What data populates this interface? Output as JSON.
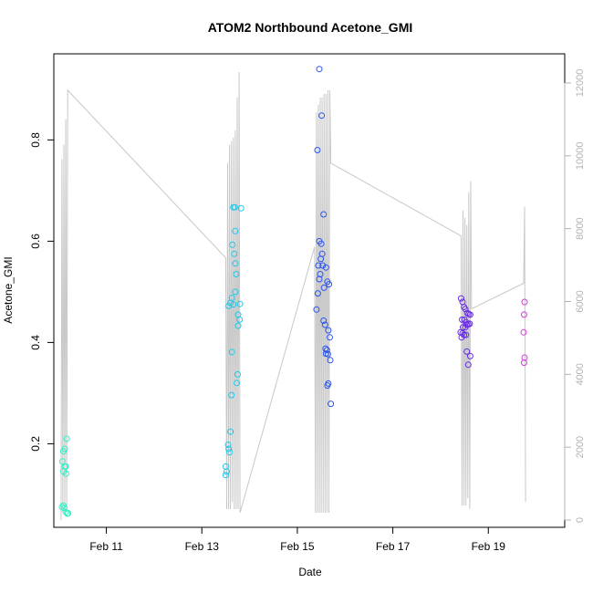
{
  "chart_data": {
    "type": "scatter",
    "title": "ATOM2 Northbound Acetone_GMI",
    "xlabel": "Date",
    "ylabel": "Acetone_GMI",
    "xlim_days": [
      9.9,
      20.6
    ],
    "ylim": [
      0.035,
      0.97
    ],
    "ylim_right": [
      -200,
      12800
    ],
    "x_ticks": [
      {
        "day": 11,
        "label": "Feb 11"
      },
      {
        "day": 13,
        "label": "Feb 13"
      },
      {
        "day": 15,
        "label": "Feb 15"
      },
      {
        "day": 17,
        "label": "Feb 17"
      },
      {
        "day": 19,
        "label": "Feb 19"
      }
    ],
    "y_ticks": [
      0.2,
      0.4,
      0.6,
      0.8
    ],
    "y_ticks_right": [
      0,
      2000,
      4000,
      6000,
      8000,
      10000,
      12000
    ],
    "points": [
      {
        "x": 10.07,
        "y": 0.075,
        "color": "#33f0c6"
      },
      {
        "x": 10.1,
        "y": 0.078,
        "color": "#33f0c6"
      },
      {
        "x": 10.12,
        "y": 0.073,
        "color": "#33f0c6"
      },
      {
        "x": 10.15,
        "y": 0.065,
        "color": "#33f0c6"
      },
      {
        "x": 10.18,
        "y": 0.062,
        "color": "#33f0c6"
      },
      {
        "x": 10.2,
        "y": 0.063,
        "color": "#33f0c6"
      },
      {
        "x": 10.08,
        "y": 0.165,
        "color": "#33f0c6"
      },
      {
        "x": 10.1,
        "y": 0.145,
        "color": "#33f0c6"
      },
      {
        "x": 10.13,
        "y": 0.155,
        "color": "#33f0c6"
      },
      {
        "x": 10.16,
        "y": 0.141,
        "color": "#33f0c6"
      },
      {
        "x": 10.1,
        "y": 0.185,
        "color": "#33f0c6"
      },
      {
        "x": 10.13,
        "y": 0.19,
        "color": "#33f0c6"
      },
      {
        "x": 10.17,
        "y": 0.21,
        "color": "#33f0c6"
      },
      {
        "x": 10.15,
        "y": 0.155,
        "color": "#33f0c6"
      },
      {
        "x": 13.5,
        "y": 0.155,
        "color": "#1fc8ea"
      },
      {
        "x": 13.52,
        "y": 0.145,
        "color": "#1fc8ea"
      },
      {
        "x": 13.5,
        "y": 0.138,
        "color": "#1fc8ea"
      },
      {
        "x": 13.55,
        "y": 0.198,
        "color": "#1fc8ea"
      },
      {
        "x": 13.56,
        "y": 0.19,
        "color": "#1fc8ea"
      },
      {
        "x": 13.58,
        "y": 0.183,
        "color": "#1fc8ea"
      },
      {
        "x": 13.6,
        "y": 0.224,
        "color": "#1fc8ea"
      },
      {
        "x": 13.62,
        "y": 0.296,
        "color": "#1fc8ea"
      },
      {
        "x": 13.63,
        "y": 0.381,
        "color": "#1fc8ea"
      },
      {
        "x": 13.56,
        "y": 0.472,
        "color": "#1fc8ea"
      },
      {
        "x": 13.6,
        "y": 0.478,
        "color": "#1fc8ea"
      },
      {
        "x": 13.63,
        "y": 0.488,
        "color": "#1fc8ea"
      },
      {
        "x": 13.66,
        "y": 0.475,
        "color": "#1fc8ea"
      },
      {
        "x": 13.7,
        "y": 0.5,
        "color": "#1fc8ea"
      },
      {
        "x": 13.64,
        "y": 0.593,
        "color": "#1fc8ea"
      },
      {
        "x": 13.68,
        "y": 0.575,
        "color": "#1fc8ea"
      },
      {
        "x": 13.7,
        "y": 0.556,
        "color": "#1fc8ea"
      },
      {
        "x": 13.72,
        "y": 0.535,
        "color": "#1fc8ea"
      },
      {
        "x": 13.7,
        "y": 0.62,
        "color": "#1fc8ea"
      },
      {
        "x": 13.66,
        "y": 0.667,
        "color": "#1fc8ea"
      },
      {
        "x": 13.69,
        "y": 0.667,
        "color": "#1fc8ea"
      },
      {
        "x": 13.82,
        "y": 0.665,
        "color": "#1fc8ea"
      },
      {
        "x": 13.8,
        "y": 0.476,
        "color": "#1fc8ea"
      },
      {
        "x": 13.76,
        "y": 0.455,
        "color": "#1fc8ea"
      },
      {
        "x": 13.79,
        "y": 0.445,
        "color": "#1fc8ea"
      },
      {
        "x": 13.76,
        "y": 0.433,
        "color": "#1fc8ea"
      },
      {
        "x": 13.75,
        "y": 0.337,
        "color": "#1fc8ea"
      },
      {
        "x": 13.73,
        "y": 0.32,
        "color": "#1fc8ea"
      },
      {
        "x": 15.46,
        "y": 0.94,
        "color": "#2a55f0"
      },
      {
        "x": 15.51,
        "y": 0.848,
        "color": "#2a55f0"
      },
      {
        "x": 15.42,
        "y": 0.78,
        "color": "#2a55f0"
      },
      {
        "x": 15.55,
        "y": 0.653,
        "color": "#2a55f0"
      },
      {
        "x": 15.46,
        "y": 0.6,
        "color": "#2a55f0"
      },
      {
        "x": 15.5,
        "y": 0.595,
        "color": "#2a55f0"
      },
      {
        "x": 15.52,
        "y": 0.575,
        "color": "#2a55f0"
      },
      {
        "x": 15.49,
        "y": 0.565,
        "color": "#2a55f0"
      },
      {
        "x": 15.44,
        "y": 0.552,
        "color": "#2a55f0"
      },
      {
        "x": 15.53,
        "y": 0.552,
        "color": "#2a55f0"
      },
      {
        "x": 15.6,
        "y": 0.548,
        "color": "#2a55f0"
      },
      {
        "x": 15.48,
        "y": 0.535,
        "color": "#2a55f0"
      },
      {
        "x": 15.46,
        "y": 0.525,
        "color": "#2a55f0"
      },
      {
        "x": 15.63,
        "y": 0.52,
        "color": "#2a55f0"
      },
      {
        "x": 15.66,
        "y": 0.515,
        "color": "#2a55f0"
      },
      {
        "x": 15.56,
        "y": 0.508,
        "color": "#2a55f0"
      },
      {
        "x": 15.43,
        "y": 0.497,
        "color": "#2a55f0"
      },
      {
        "x": 15.4,
        "y": 0.465,
        "color": "#2a55f0"
      },
      {
        "x": 15.55,
        "y": 0.443,
        "color": "#2a55f0"
      },
      {
        "x": 15.58,
        "y": 0.435,
        "color": "#2a55f0"
      },
      {
        "x": 15.65,
        "y": 0.424,
        "color": "#2a55f0"
      },
      {
        "x": 15.68,
        "y": 0.41,
        "color": "#2a55f0"
      },
      {
        "x": 15.59,
        "y": 0.388,
        "color": "#2a55f0"
      },
      {
        "x": 15.62,
        "y": 0.385,
        "color": "#2a55f0"
      },
      {
        "x": 15.6,
        "y": 0.378,
        "color": "#2a55f0"
      },
      {
        "x": 15.64,
        "y": 0.377,
        "color": "#2a55f0"
      },
      {
        "x": 15.69,
        "y": 0.365,
        "color": "#2a55f0"
      },
      {
        "x": 15.65,
        "y": 0.319,
        "color": "#2a55f0"
      },
      {
        "x": 15.63,
        "y": 0.315,
        "color": "#2a55f0"
      },
      {
        "x": 15.7,
        "y": 0.279,
        "color": "#2a55f0"
      },
      {
        "x": 18.43,
        "y": 0.487,
        "color": "#6a2be8"
      },
      {
        "x": 18.46,
        "y": 0.48,
        "color": "#6a2be8"
      },
      {
        "x": 18.49,
        "y": 0.47,
        "color": "#6a2be8"
      },
      {
        "x": 18.52,
        "y": 0.466,
        "color": "#6a2be8"
      },
      {
        "x": 18.56,
        "y": 0.458,
        "color": "#6a2be8"
      },
      {
        "x": 18.59,
        "y": 0.456,
        "color": "#6a2be8"
      },
      {
        "x": 18.62,
        "y": 0.455,
        "color": "#6a2be8"
      },
      {
        "x": 18.45,
        "y": 0.445,
        "color": "#6a2be8"
      },
      {
        "x": 18.5,
        "y": 0.445,
        "color": "#6a2be8"
      },
      {
        "x": 18.53,
        "y": 0.44,
        "color": "#6a2be8"
      },
      {
        "x": 18.55,
        "y": 0.435,
        "color": "#6a2be8"
      },
      {
        "x": 18.58,
        "y": 0.436,
        "color": "#6a2be8"
      },
      {
        "x": 18.61,
        "y": 0.437,
        "color": "#6a2be8"
      },
      {
        "x": 18.47,
        "y": 0.43,
        "color": "#6a2be8"
      },
      {
        "x": 18.52,
        "y": 0.43,
        "color": "#6a2be8"
      },
      {
        "x": 18.42,
        "y": 0.42,
        "color": "#6a2be8"
      },
      {
        "x": 18.46,
        "y": 0.418,
        "color": "#6a2be8"
      },
      {
        "x": 18.49,
        "y": 0.415,
        "color": "#6a2be8"
      },
      {
        "x": 18.53,
        "y": 0.415,
        "color": "#6a2be8"
      },
      {
        "x": 18.44,
        "y": 0.41,
        "color": "#6a2be8"
      },
      {
        "x": 18.55,
        "y": 0.382,
        "color": "#6a2be8"
      },
      {
        "x": 18.62,
        "y": 0.373,
        "color": "#6a2be8"
      },
      {
        "x": 18.58,
        "y": 0.356,
        "color": "#6a2be8"
      },
      {
        "x": 19.76,
        "y": 0.48,
        "color": "#d63ce0"
      },
      {
        "x": 19.75,
        "y": 0.455,
        "color": "#d63ce0"
      },
      {
        "x": 19.74,
        "y": 0.42,
        "color": "#d63ce0"
      },
      {
        "x": 19.76,
        "y": 0.37,
        "color": "#d63ce0"
      },
      {
        "x": 19.75,
        "y": 0.36,
        "color": "#d63ce0"
      }
    ],
    "altitude_line": {
      "color": "#c8c8c8",
      "points": [
        [
          10.05,
          0
        ],
        [
          10.07,
          9900
        ],
        [
          10.09,
          200
        ],
        [
          10.11,
          10300
        ],
        [
          10.13,
          200
        ],
        [
          10.15,
          11000
        ],
        [
          10.17,
          300
        ],
        [
          10.19,
          11800
        ],
        [
          13.5,
          7200
        ],
        [
          13.52,
          300
        ],
        [
          13.54,
          9800
        ],
        [
          13.56,
          300
        ],
        [
          13.58,
          10300
        ],
        [
          13.6,
          300
        ],
        [
          13.62,
          10400
        ],
        [
          13.64,
          500
        ],
        [
          13.66,
          10500
        ],
        [
          13.68,
          300
        ],
        [
          13.7,
          10700
        ],
        [
          13.72,
          300
        ],
        [
          13.74,
          11600
        ],
        [
          13.76,
          300
        ],
        [
          13.78,
          12300
        ],
        [
          13.8,
          200
        ],
        [
          15.36,
          7500
        ],
        [
          15.38,
          200
        ],
        [
          15.4,
          11200
        ],
        [
          15.42,
          200
        ],
        [
          15.44,
          11400
        ],
        [
          15.46,
          200
        ],
        [
          15.48,
          11600
        ],
        [
          15.5,
          200
        ],
        [
          15.52,
          11600
        ],
        [
          15.54,
          200
        ],
        [
          15.56,
          11700
        ],
        [
          15.58,
          200
        ],
        [
          15.6,
          11700
        ],
        [
          15.62,
          200
        ],
        [
          15.64,
          11800
        ],
        [
          15.66,
          200
        ],
        [
          15.68,
          11800
        ],
        [
          15.7,
          9800
        ],
        [
          18.43,
          7800
        ],
        [
          18.45,
          400
        ],
        [
          18.47,
          8500
        ],
        [
          18.49,
          400
        ],
        [
          18.51,
          8300
        ],
        [
          18.53,
          400
        ],
        [
          18.55,
          8100
        ],
        [
          18.57,
          600
        ],
        [
          18.59,
          9000
        ],
        [
          18.61,
          300
        ],
        [
          18.63,
          9300
        ],
        [
          18.65,
          5800
        ],
        [
          19.74,
          6500
        ],
        [
          19.76,
          8600
        ],
        [
          19.78,
          500
        ]
      ]
    }
  }
}
